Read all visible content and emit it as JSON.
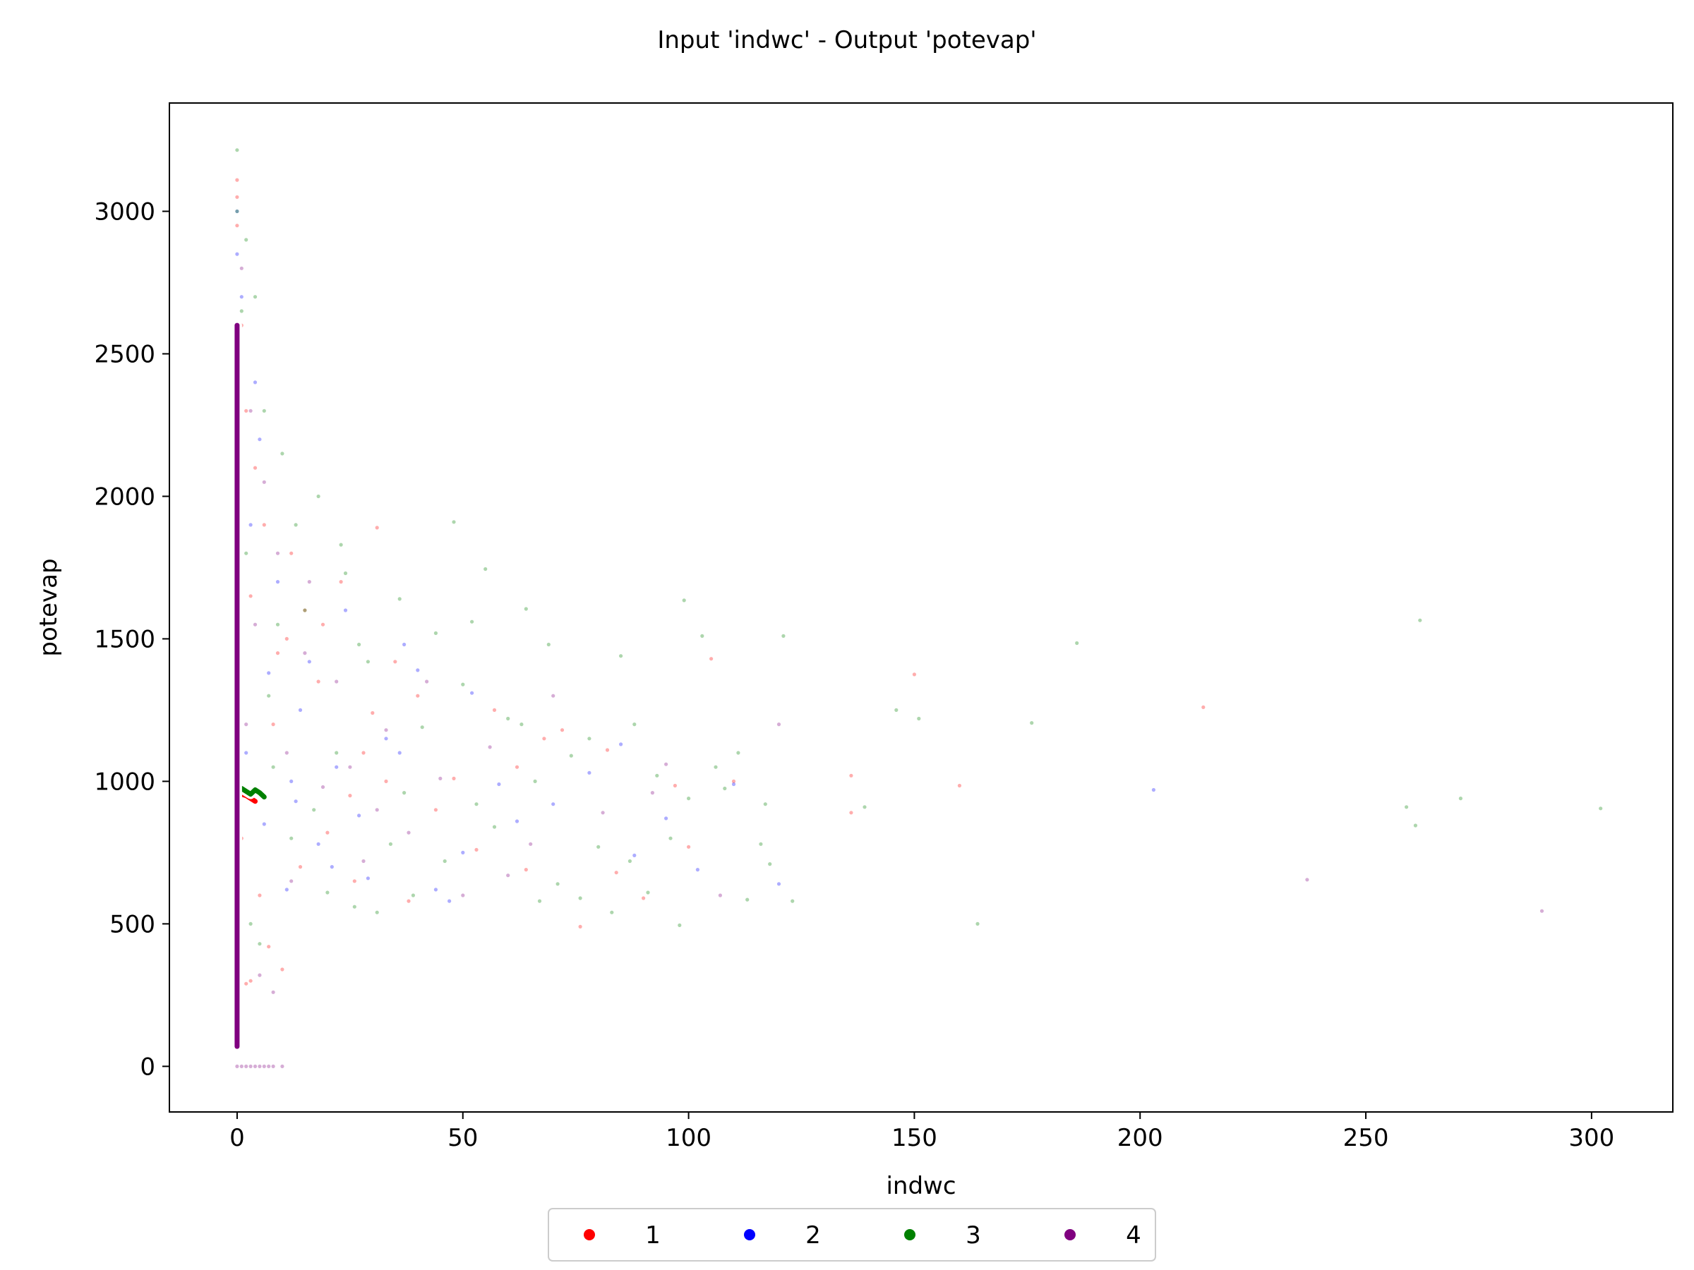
{
  "chart_data": {
    "type": "scatter",
    "title": "Input 'indwc' - Output 'potevap'",
    "xlabel": "indwc",
    "ylabel": "potevap",
    "xlim": [
      -15,
      318
    ],
    "ylim": [
      -160,
      3380
    ],
    "xticks": [
      0,
      50,
      100,
      150,
      200,
      250,
      300
    ],
    "yticks": [
      0,
      500,
      1000,
      1500,
      2000,
      2500,
      3000
    ],
    "grid": false,
    "legend_placement": "bottom-center",
    "series": [
      {
        "name": "1",
        "color": "#ff0000",
        "points": [
          [
            31,
            1890
          ],
          [
            105,
            1430
          ],
          [
            150,
            1375
          ],
          [
            214,
            1260
          ],
          [
            160,
            985
          ],
          [
            136,
            890
          ],
          [
            23,
            1700
          ],
          [
            15,
            1600
          ],
          [
            9,
            1450
          ],
          [
            40,
            1300
          ],
          [
            28,
            1100
          ],
          [
            62,
            1050
          ],
          [
            76,
            490
          ],
          [
            84,
            680
          ],
          [
            97,
            985
          ],
          [
            136,
            1020
          ],
          [
            12,
            1800
          ],
          [
            18,
            1350
          ],
          [
            6,
            1900
          ],
          [
            4,
            2100
          ],
          [
            3,
            1650
          ],
          [
            20,
            820
          ],
          [
            44,
            900
          ],
          [
            53,
            760
          ],
          [
            68,
            1150
          ],
          [
            90,
            590
          ],
          [
            110,
            1000
          ],
          [
            35,
            1420
          ],
          [
            26,
            650
          ],
          [
            14,
            700
          ],
          [
            8,
            1200
          ],
          [
            2,
            2300
          ],
          [
            1,
            2600
          ],
          [
            0,
            3110
          ],
          [
            0,
            2950
          ],
          [
            0,
            3050
          ],
          [
            11,
            1500
          ],
          [
            33,
            1000
          ],
          [
            57,
            1250
          ],
          [
            72,
            1180
          ],
          [
            0,
            310
          ],
          [
            2,
            290
          ],
          [
            5,
            600
          ],
          [
            7,
            420
          ],
          [
            19,
            1550
          ],
          [
            38,
            580
          ],
          [
            48,
            1010
          ],
          [
            64,
            690
          ],
          [
            82,
            1110
          ],
          [
            100,
            770
          ],
          [
            3,
            300
          ],
          [
            10,
            340
          ],
          [
            1,
            800
          ],
          [
            25,
            950
          ],
          [
            30,
            1240
          ]
        ],
        "curve": [
          [
            0,
            280
          ],
          [
            0,
            340
          ],
          [
            0,
            400
          ],
          [
            0,
            900
          ],
          [
            0,
            960
          ],
          [
            2,
            950
          ],
          [
            4,
            930
          ]
        ]
      },
      {
        "name": "2",
        "color": "#0000ff",
        "points": [
          [
            110,
            990
          ],
          [
            203,
            970
          ],
          [
            85,
            1130
          ],
          [
            52,
            1310
          ],
          [
            37,
            1480
          ],
          [
            22,
            1050
          ],
          [
            14,
            1250
          ],
          [
            9,
            1700
          ],
          [
            5,
            2200
          ],
          [
            18,
            780
          ],
          [
            27,
            880
          ],
          [
            44,
            620
          ],
          [
            62,
            860
          ],
          [
            95,
            870
          ],
          [
            120,
            640
          ],
          [
            33,
            1150
          ],
          [
            7,
            1380
          ],
          [
            3,
            1900
          ],
          [
            12,
            1000
          ],
          [
            40,
            1390
          ],
          [
            58,
            990
          ],
          [
            29,
            660
          ],
          [
            16,
            1420
          ],
          [
            4,
            2400
          ],
          [
            1,
            2700
          ],
          [
            0,
            3000
          ],
          [
            0,
            2850
          ],
          [
            2,
            1100
          ],
          [
            6,
            850
          ],
          [
            11,
            620
          ],
          [
            21,
            700
          ],
          [
            47,
            580
          ],
          [
            70,
            920
          ],
          [
            88,
            740
          ],
          [
            24,
            1600
          ],
          [
            36,
            1100
          ],
          [
            50,
            750
          ],
          [
            78,
            1030
          ],
          [
            102,
            690
          ],
          [
            13,
            930
          ]
        ],
        "curve": []
      },
      {
        "name": "3",
        "color": "#008000",
        "points": [
          [
            262,
            1565
          ],
          [
            186,
            1485
          ],
          [
            176,
            1205
          ],
          [
            151,
            1220
          ],
          [
            146,
            1250
          ],
          [
            139,
            910
          ],
          [
            117,
            920
          ],
          [
            113,
            585
          ],
          [
            123,
            580
          ],
          [
            98,
            495
          ],
          [
            164,
            500
          ],
          [
            259,
            910
          ],
          [
            261,
            845
          ],
          [
            271,
            940
          ],
          [
            302,
            905
          ],
          [
            121,
            1510
          ],
          [
            99,
            1635
          ],
          [
            103,
            1510
          ],
          [
            48,
            1910
          ],
          [
            55,
            1745
          ],
          [
            64,
            1605
          ],
          [
            69,
            1480
          ],
          [
            85,
            1440
          ],
          [
            88,
            1200
          ],
          [
            78,
            1150
          ],
          [
            93,
            1020
          ],
          [
            108,
            975
          ],
          [
            116,
            780
          ],
          [
            118,
            710
          ],
          [
            23,
            1830
          ],
          [
            18,
            2000
          ],
          [
            10,
            2150
          ],
          [
            6,
            2300
          ],
          [
            4,
            2700
          ],
          [
            0,
            3215
          ],
          [
            0,
            3000
          ],
          [
            2,
            2900
          ],
          [
            1,
            2650
          ],
          [
            44,
            1520
          ],
          [
            52,
            1560
          ],
          [
            60,
            1220
          ],
          [
            36,
            1640
          ],
          [
            29,
            1420
          ],
          [
            24,
            1730
          ],
          [
            15,
            1600
          ],
          [
            13,
            1900
          ],
          [
            8,
            1050
          ],
          [
            12,
            800
          ],
          [
            20,
            610
          ],
          [
            26,
            560
          ],
          [
            31,
            540
          ],
          [
            39,
            600
          ],
          [
            46,
            720
          ],
          [
            57,
            840
          ],
          [
            66,
            1000
          ],
          [
            74,
            1090
          ],
          [
            80,
            770
          ],
          [
            91,
            610
          ],
          [
            96,
            800
          ],
          [
            106,
            1050
          ],
          [
            111,
            1100
          ],
          [
            3,
            500
          ],
          [
            5,
            430
          ],
          [
            7,
            1300
          ],
          [
            17,
            900
          ],
          [
            22,
            1100
          ],
          [
            34,
            780
          ],
          [
            41,
            1190
          ],
          [
            50,
            1340
          ],
          [
            63,
            1200
          ],
          [
            71,
            640
          ],
          [
            83,
            540
          ],
          [
            2,
            1800
          ],
          [
            9,
            1550
          ],
          [
            27,
            1480
          ],
          [
            37,
            960
          ],
          [
            53,
            920
          ],
          [
            67,
            580
          ],
          [
            76,
            590
          ],
          [
            87,
            720
          ],
          [
            100,
            940
          ]
        ],
        "curve": [
          [
            0,
            360
          ],
          [
            0,
            700
          ],
          [
            0,
            960
          ],
          [
            1,
            975
          ],
          [
            2,
            965
          ],
          [
            3,
            955
          ],
          [
            4,
            970
          ],
          [
            5,
            960
          ],
          [
            6,
            945
          ]
        ]
      },
      {
        "name": "4",
        "color": "#800080",
        "points": [
          [
            237,
            655
          ],
          [
            289,
            545
          ],
          [
            1,
            0
          ],
          [
            2,
            0
          ],
          [
            3,
            0
          ],
          [
            4,
            0
          ],
          [
            5,
            0
          ],
          [
            6,
            0
          ],
          [
            7,
            0
          ],
          [
            8,
            0
          ],
          [
            10,
            0
          ],
          [
            0,
            0
          ],
          [
            60,
            670
          ],
          [
            42,
            1350
          ],
          [
            33,
            1180
          ],
          [
            25,
            1050
          ],
          [
            15,
            1450
          ],
          [
            9,
            1800
          ],
          [
            6,
            2050
          ],
          [
            3,
            2300
          ],
          [
            1,
            2800
          ],
          [
            0,
            2550
          ],
          [
            0,
            2400
          ],
          [
            19,
            980
          ],
          [
            28,
            720
          ],
          [
            38,
            820
          ],
          [
            50,
            600
          ],
          [
            70,
            1300
          ],
          [
            92,
            960
          ],
          [
            12,
            650
          ],
          [
            5,
            320
          ],
          [
            8,
            260
          ],
          [
            2,
            1200
          ],
          [
            4,
            1550
          ],
          [
            16,
            1700
          ],
          [
            22,
            1350
          ],
          [
            31,
            900
          ],
          [
            45,
            1010
          ],
          [
            56,
            1120
          ],
          [
            65,
            780
          ],
          [
            81,
            890
          ],
          [
            95,
            1060
          ],
          [
            107,
            600
          ],
          [
            120,
            1200
          ],
          [
            11,
            1100
          ]
        ],
        "curve": [
          [
            0,
            70
          ],
          [
            0,
            200
          ],
          [
            0,
            1000
          ],
          [
            0,
            1250
          ],
          [
            0,
            1500
          ],
          [
            0,
            1800
          ],
          [
            0,
            2100
          ],
          [
            0,
            2300
          ],
          [
            0,
            2600
          ]
        ]
      }
    ]
  }
}
